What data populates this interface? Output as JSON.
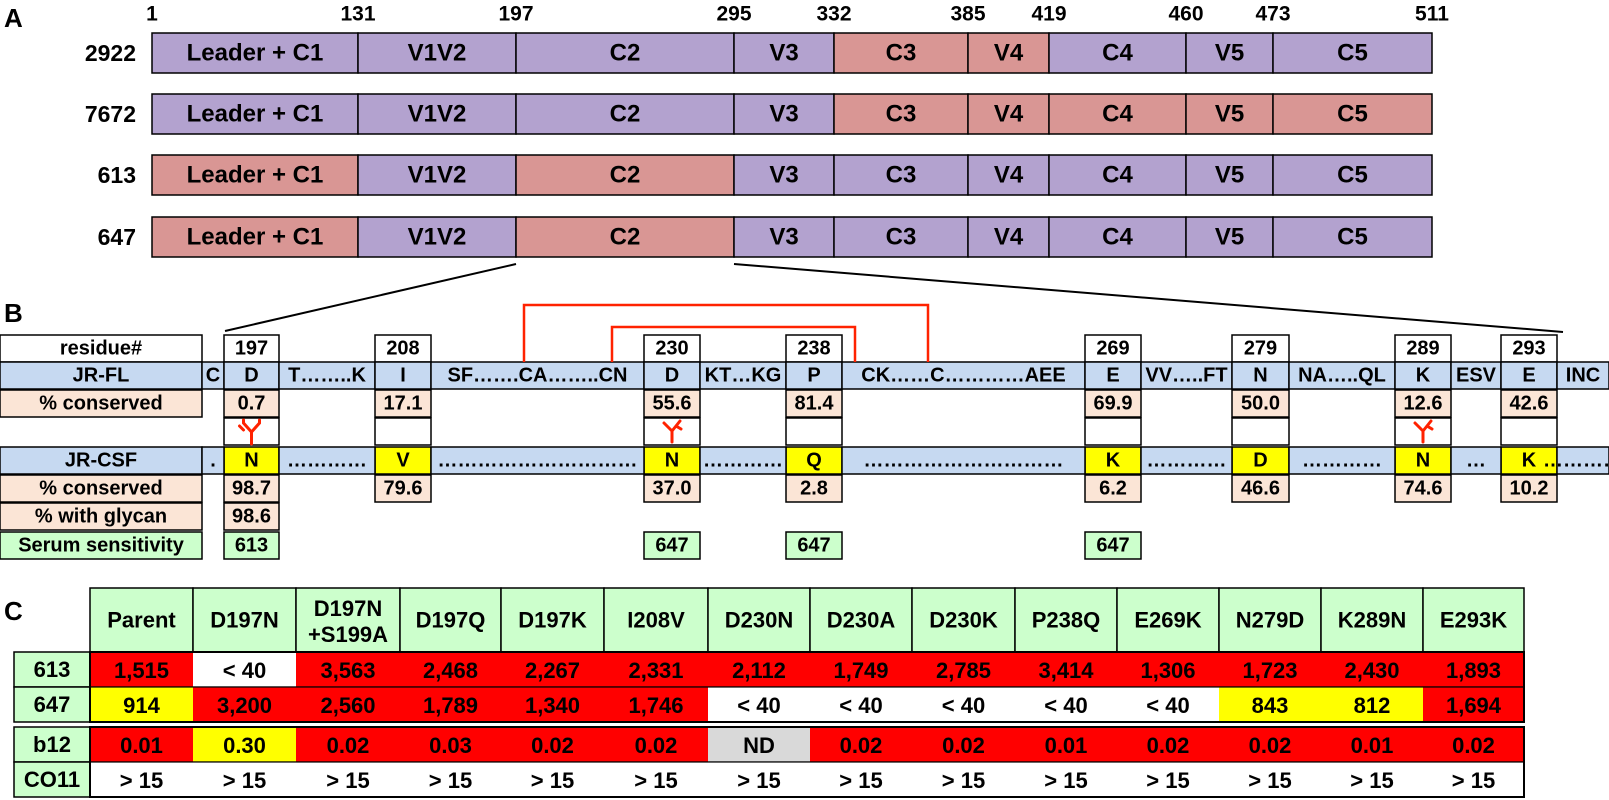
{
  "colors": {
    "purple": "#b3a2cf",
    "salmon": "#d99694",
    "blue": "#c6d9f1",
    "peach": "#fbe5d6",
    "yellow": "#ffff00",
    "green": "#ccffcc",
    "red": "#ff0000",
    "gray": "#d9d9d9",
    "linkRed": "#ff2200"
  },
  "panelA": {
    "label": "A",
    "positions": [
      "1",
      "131",
      "197",
      "295",
      "332",
      "385",
      "419",
      "460",
      "473",
      "511"
    ],
    "segments": [
      "Leader + C1",
      "V1V2",
      "C2",
      "V3",
      "C3",
      "V4",
      "C4",
      "V5",
      "C5"
    ],
    "rows": [
      {
        "name": "2922",
        "colors": [
          "p",
          "p",
          "p",
          "p",
          "s",
          "s",
          "p",
          "p",
          "p"
        ]
      },
      {
        "name": "7672",
        "colors": [
          "p",
          "p",
          "p",
          "p",
          "s",
          "s",
          "s",
          "s",
          "s"
        ]
      },
      {
        "name": "613",
        "colors": [
          "s",
          "p",
          "s",
          "p",
          "p",
          "p",
          "p",
          "p",
          "p"
        ]
      },
      {
        "name": "647",
        "colors": [
          "s",
          "p",
          "s",
          "p",
          "p",
          "p",
          "p",
          "p",
          "p"
        ]
      }
    ]
  },
  "panelB": {
    "label": "B",
    "residue_header": "residue#",
    "jrfl_label": "JR-FL",
    "conserved_label": "% conserved",
    "jrcsf_label": "JR-CSF",
    "glycan_label": "% with glycan",
    "serum_label": "Serum sensitivity",
    "columns": [
      {
        "text": "C",
        "type": "fill"
      },
      {
        "res": "197",
        "jrfl": "D",
        "cons1": "0.7",
        "jrcsf": "N",
        "cons2": "98.7",
        "glycan": "98.6",
        "serum": "613",
        "glycan_icon": "branched"
      },
      {
        "text": "T……..K",
        "type": "fill"
      },
      {
        "res": "208",
        "jrfl": "I",
        "cons1": "17.1",
        "jrcsf": "V",
        "cons2": "79.6"
      },
      {
        "text": "SF…….CA……..CN",
        "type": "fill"
      },
      {
        "res": "230",
        "jrfl": "D",
        "cons1": "55.6",
        "jrcsf": "N",
        "cons2": "37.0",
        "serum": "647",
        "glycan_icon": "y"
      },
      {
        "text": "KT…KG",
        "type": "fill"
      },
      {
        "res": "238",
        "jrfl": "P",
        "cons1": "81.4",
        "jrcsf": "Q",
        "cons2": "2.8",
        "serum": "647"
      },
      {
        "text": "CK……C…………AEE",
        "type": "fill"
      },
      {
        "res": "269",
        "jrfl": "E",
        "cons1": "69.9",
        "jrcsf": "K",
        "cons2": "6.2",
        "serum": "647"
      },
      {
        "text": "VV…..FT",
        "type": "fill"
      },
      {
        "res": "279",
        "jrfl": "N",
        "cons1": "50.0",
        "jrcsf": "D",
        "cons2": "46.6"
      },
      {
        "text": "NA…..QL",
        "type": "fill"
      },
      {
        "res": "289",
        "jrfl": "K",
        "cons1": "12.6",
        "jrcsf": "N",
        "cons2": "74.6",
        "glycan_icon": "y"
      },
      {
        "text": "ESV",
        "type": "fill"
      },
      {
        "res": "293",
        "jrfl": "E",
        "cons1": "42.6",
        "jrcsf": "K",
        "cons2": "10.2"
      },
      {
        "text": "INC",
        "type": "fill"
      }
    ],
    "jrcsf_fillers": [
      ".",
      "…………",
      "…………………………",
      "…………",
      "…………………………",
      "…………",
      "…………",
      "…",
      "…………"
    ]
  },
  "panelC": {
    "label": "C",
    "headers": [
      "Parent",
      "D197N",
      "D197N\n+S199A",
      "D197Q",
      "D197K",
      "I208V",
      "D230N",
      "D230A",
      "D230K",
      "P238Q",
      "E269K",
      "N279D",
      "K289N",
      "E293K"
    ],
    "rows": [
      {
        "name": "613",
        "values": [
          "1,515",
          "< 40",
          "3,563",
          "2,468",
          "2,267",
          "2,331",
          "2,112",
          "1,749",
          "2,785",
          "3,414",
          "1,306",
          "1,723",
          "2,430",
          "1,893"
        ],
        "colors": [
          "r",
          "w",
          "r",
          "r",
          "r",
          "r",
          "r",
          "r",
          "r",
          "r",
          "r",
          "r",
          "r",
          "r"
        ]
      },
      {
        "name": "647",
        "values": [
          "914",
          "3,200",
          "2,560",
          "1,789",
          "1,340",
          "1,746",
          "< 40",
          "< 40",
          "< 40",
          "< 40",
          "< 40",
          "843",
          "812",
          "1,694"
        ],
        "colors": [
          "y",
          "r",
          "r",
          "r",
          "r",
          "r",
          "w",
          "w",
          "w",
          "w",
          "w",
          "y",
          "y",
          "r"
        ]
      },
      {
        "name": "b12",
        "values": [
          "0.01",
          "0.30",
          "0.02",
          "0.03",
          "0.02",
          "0.02",
          "ND",
          "0.02",
          "0.02",
          "0.01",
          "0.02",
          "0.02",
          "0.01",
          "0.02"
        ],
        "colors": [
          "r",
          "y",
          "r",
          "r",
          "r",
          "r",
          "g",
          "r",
          "r",
          "r",
          "r",
          "r",
          "r",
          "r"
        ]
      },
      {
        "name": "CO11",
        "values": [
          "> 15",
          "> 15",
          "> 15",
          "> 15",
          "> 15",
          "> 15",
          "> 15",
          "> 15",
          "> 15",
          "> 15",
          "> 15",
          "> 15",
          "> 15",
          "> 15"
        ],
        "colors": [
          "w",
          "w",
          "w",
          "w",
          "w",
          "w",
          "w",
          "w",
          "w",
          "w",
          "w",
          "w",
          "w",
          "w"
        ]
      }
    ]
  }
}
